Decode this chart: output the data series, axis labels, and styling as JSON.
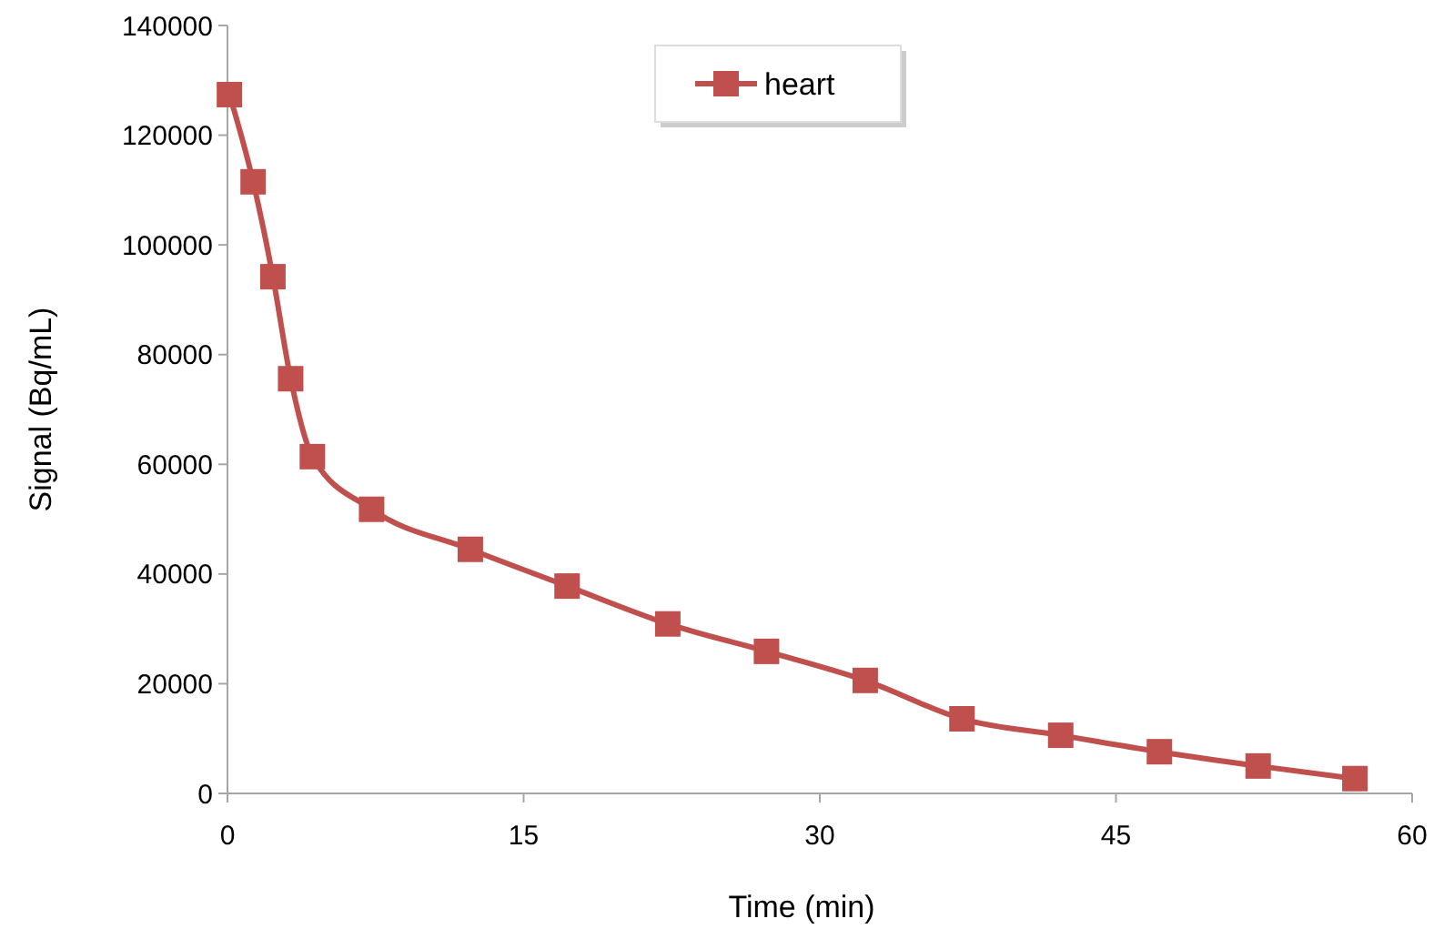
{
  "chart_data": {
    "type": "line",
    "xlabel": "Time (min)",
    "ylabel": "Signal (Bq/mL)",
    "xlim": [
      0,
      60
    ],
    "xticks": [
      0,
      15,
      30,
      45,
      60
    ],
    "ylim": [
      0,
      140000
    ],
    "yticks": [
      0,
      20000,
      40000,
      60000,
      80000,
      100000,
      120000,
      140000
    ],
    "grid": false,
    "legend": "top",
    "marker": "square",
    "line_style": "solid",
    "series": [
      {
        "name": "heart",
        "color": "#c0504d",
        "x": [
          0.1,
          1.3,
          2.3,
          3.2,
          4.3,
          7.3,
          12.3,
          17.2,
          22.3,
          27.3,
          32.3,
          37.2,
          42.2,
          47.2,
          52.2,
          57.1
        ],
        "values": [
          127400,
          111500,
          94200,
          75600,
          61400,
          51800,
          44500,
          37800,
          30900,
          25900,
          20600,
          13600,
          10600,
          7600,
          5000,
          2700
        ]
      }
    ]
  }
}
